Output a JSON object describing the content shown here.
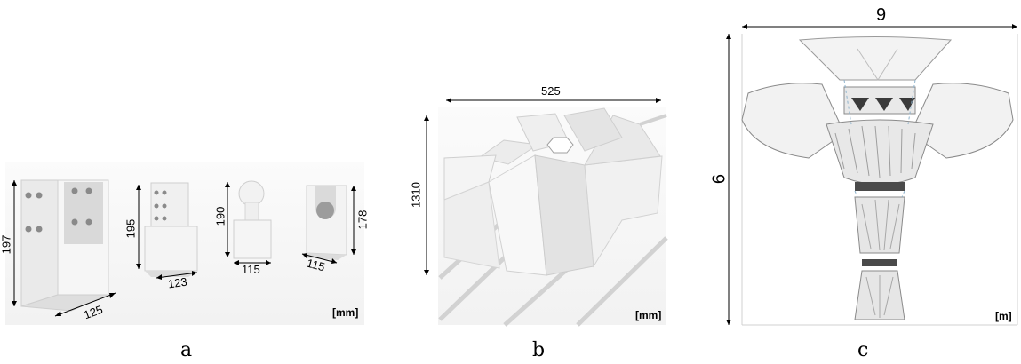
{
  "panels": {
    "a": {
      "caption": "a",
      "unit": "[mm]",
      "dims": {
        "p1_height": "197",
        "p1_width": "125",
        "p2_height": "195",
        "p2_width": "123",
        "p3_height": "190",
        "p3_width": "115",
        "p4_height": "178",
        "p4_width": "115"
      }
    },
    "b": {
      "caption": "b",
      "unit": "[mm]",
      "dims": {
        "width": "525",
        "height": "1310"
      }
    },
    "c": {
      "caption": "c",
      "unit": "[m]",
      "dims": {
        "width": "9",
        "height": "6"
      }
    }
  }
}
